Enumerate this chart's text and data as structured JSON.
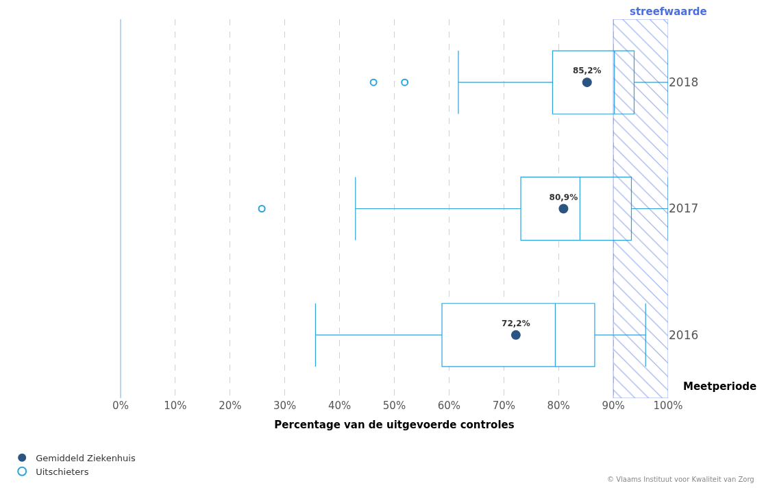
{
  "chart_data": {
    "type": "box",
    "orientation": "horizontal",
    "categories": [
      "2018",
      "2017",
      "2016"
    ],
    "xlabel": "Percentage van de uitgevoerde controles",
    "ylabel": "Meetperiode",
    "xlim": [
      0,
      100
    ],
    "xticks": [
      {
        "value": 0,
        "label": "0%"
      },
      {
        "value": 10,
        "label": "10%"
      },
      {
        "value": 20,
        "label": "20%"
      },
      {
        "value": 30,
        "label": "30%"
      },
      {
        "value": 40,
        "label": "40%"
      },
      {
        "value": 50,
        "label": "50%"
      },
      {
        "value": 60,
        "label": "60%"
      },
      {
        "value": 70,
        "label": "70%"
      },
      {
        "value": 80,
        "label": "80%"
      },
      {
        "value": 90,
        "label": "90%"
      },
      {
        "value": 100,
        "label": "100%"
      }
    ],
    "grid": "x",
    "legend": "bottom left",
    "series": [
      {
        "name": "Uitschieters",
        "color": "#29a3dc",
        "boxes": [
          {
            "low": 61.7,
            "q1": 78.9,
            "median": 90.2,
            "q3": 93.8,
            "high": 100,
            "outliers": [
              46.2,
              51.9
            ]
          },
          {
            "low": 42.9,
            "q1": 73.1,
            "median": 83.9,
            "q3": 93.3,
            "high": 100,
            "outliers": [
              25.8
            ]
          },
          {
            "low": 35.6,
            "q1": 58.7,
            "median": 79.4,
            "q3": 86.6,
            "high": 95.9
          }
        ]
      },
      {
        "name": "Gemiddeld Ziekenhuis",
        "type": "scatter",
        "color": "#2b5580",
        "marker": "circle",
        "values": [
          85.2,
          80.9,
          72.2
        ],
        "value_labels": [
          "85,2%",
          "80,9%",
          "72,2%"
        ]
      }
    ],
    "bands": [
      {
        "axis": "x",
        "from": 90,
        "to": 100,
        "label": "streefwaarde",
        "color": "#4a6ee0"
      }
    ],
    "annotations": [
      "© Vlaams Instituut voor Kwaliteit van Zorg"
    ]
  }
}
